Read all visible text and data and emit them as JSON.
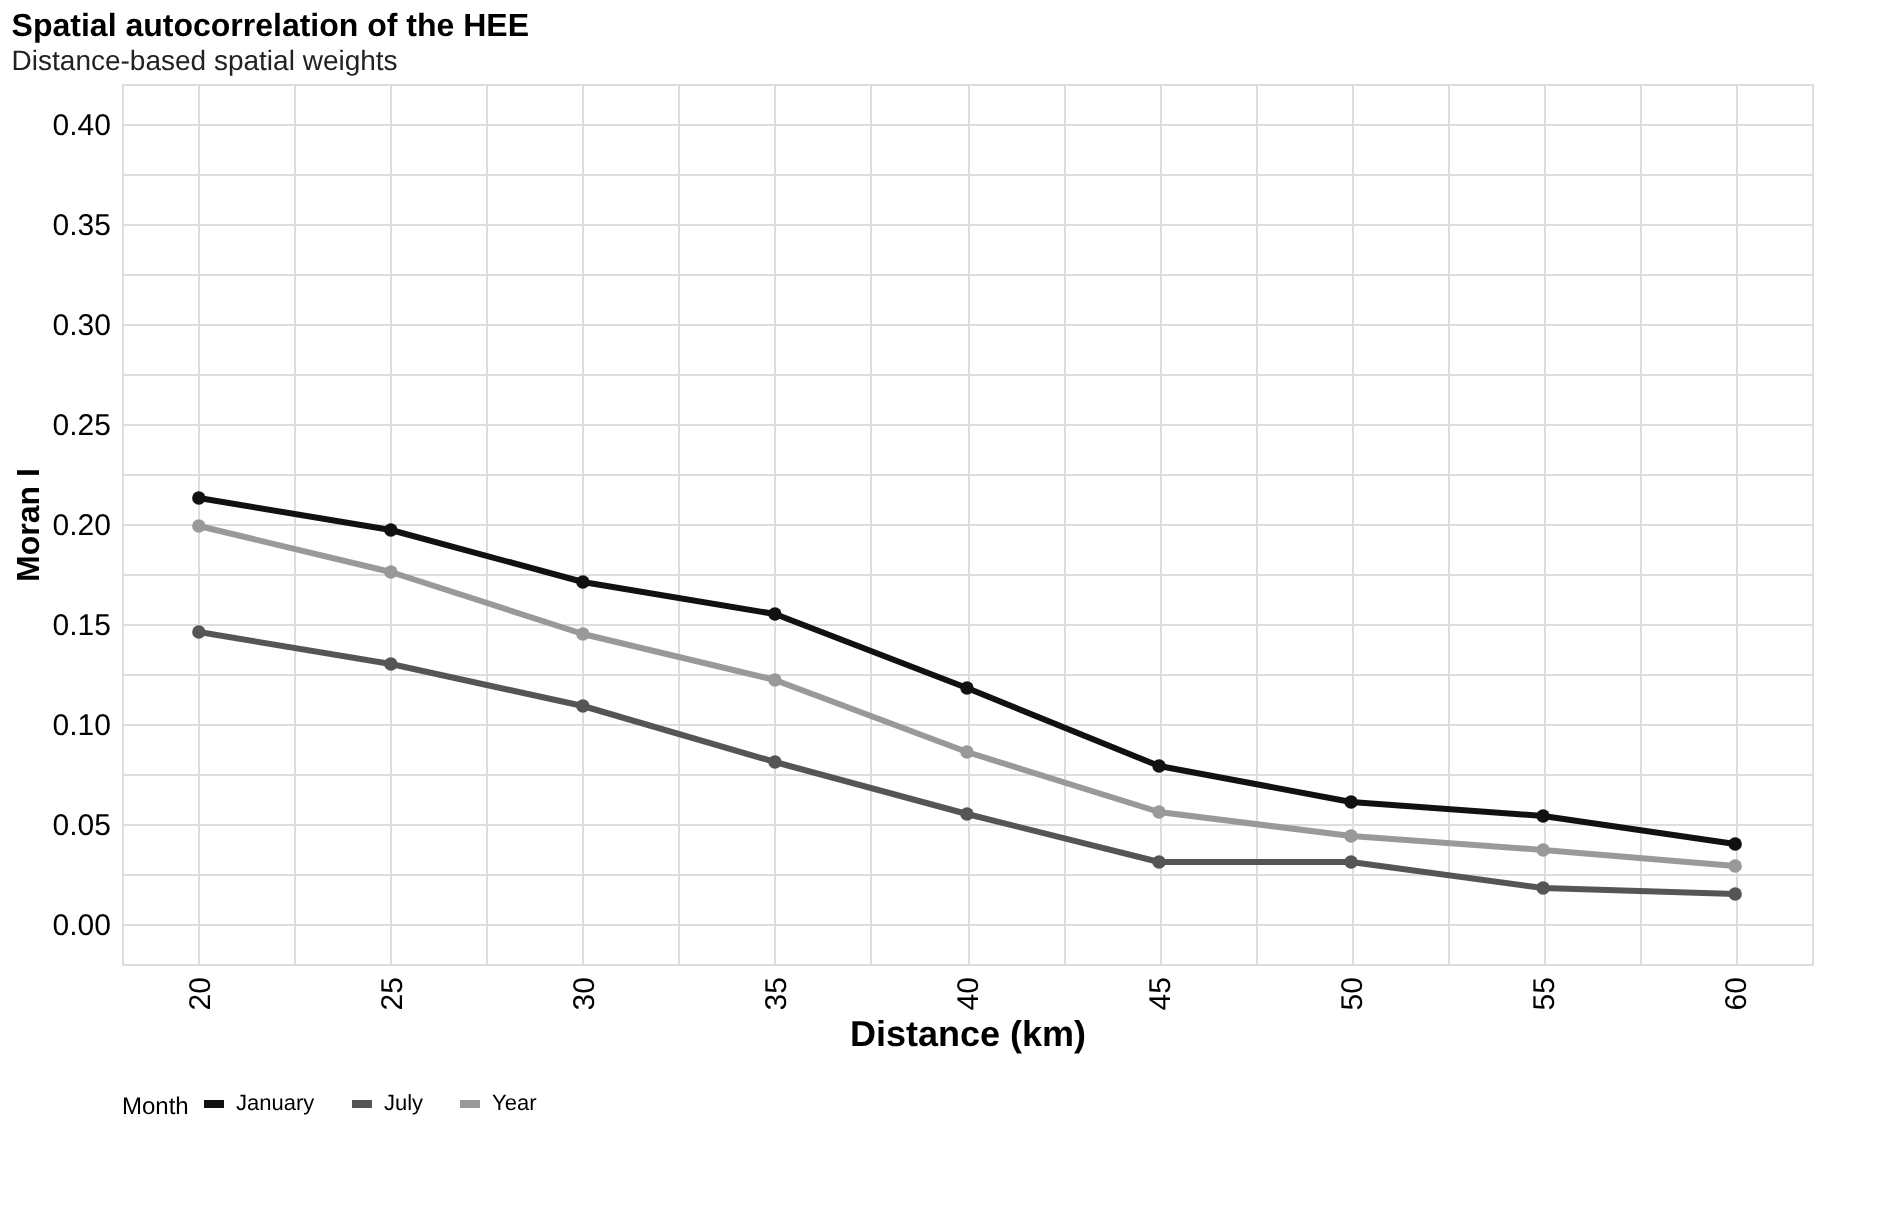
{
  "chart_data": {
    "type": "line",
    "title": "Spatial autocorrelation of the HEE",
    "subtitle": "Distance-based spatial weights",
    "xlabel": "Distance (km)",
    "ylabel": "Moran I",
    "legend_title": "Month",
    "x": [
      20,
      25,
      30,
      35,
      40,
      45,
      50,
      55,
      60
    ],
    "series": [
      {
        "name": "January",
        "color": "#111111",
        "values": [
          0.213,
          0.197,
          0.171,
          0.155,
          0.118,
          0.079,
          0.061,
          0.054,
          0.04
        ]
      },
      {
        "name": "July",
        "color": "#555555",
        "values": [
          0.146,
          0.13,
          0.109,
          0.081,
          0.055,
          0.031,
          0.031,
          0.018,
          0.015
        ]
      },
      {
        "name": "Year",
        "color": "#999999",
        "values": [
          0.199,
          0.176,
          0.145,
          0.122,
          0.086,
          0.056,
          0.044,
          0.037,
          0.029
        ]
      }
    ],
    "xlim": [
      18,
      62
    ],
    "xticks": [
      20,
      {
        "value": 22.5,
        "label": null
      },
      25,
      {
        "value": 27.5,
        "label": null
      },
      30,
      {
        "value": 32.5,
        "label": null
      },
      35,
      {
        "value": 37.5,
        "label": null
      },
      40,
      {
        "value": 42.5,
        "label": null
      },
      45,
      {
        "value": 47.5,
        "label": null
      },
      50,
      {
        "value": 52.5,
        "label": null
      },
      55,
      {
        "value": 57.5,
        "label": null
      },
      60
    ],
    "ylim": [
      -0.02,
      0.42
    ],
    "yticks": [
      {
        "value": 0,
        "label": "0.00"
      },
      {
        "value": 0.025,
        "label": null
      },
      {
        "value": 0.05,
        "label": "0.05"
      },
      {
        "value": 0.075,
        "label": null
      },
      {
        "value": 0.1,
        "label": "0.10"
      },
      {
        "value": 0.125,
        "label": null
      },
      {
        "value": 0.15,
        "label": "0.15"
      },
      {
        "value": 0.175,
        "label": null
      },
      {
        "value": 0.2,
        "label": "0.20"
      },
      {
        "value": 0.225,
        "label": null
      },
      {
        "value": 0.25,
        "label": "0.25"
      },
      {
        "value": 0.275,
        "label": null
      },
      {
        "value": 0.3,
        "label": "0.30"
      },
      {
        "value": 0.325,
        "label": null
      },
      {
        "value": 0.35,
        "label": "0.35"
      },
      {
        "value": 0.375,
        "label": null
      },
      {
        "value": 0.4,
        "label": "0.40"
      }
    ],
    "grid": true,
    "legend": "bottom",
    "marker": "circle",
    "line_style": "solid"
  }
}
